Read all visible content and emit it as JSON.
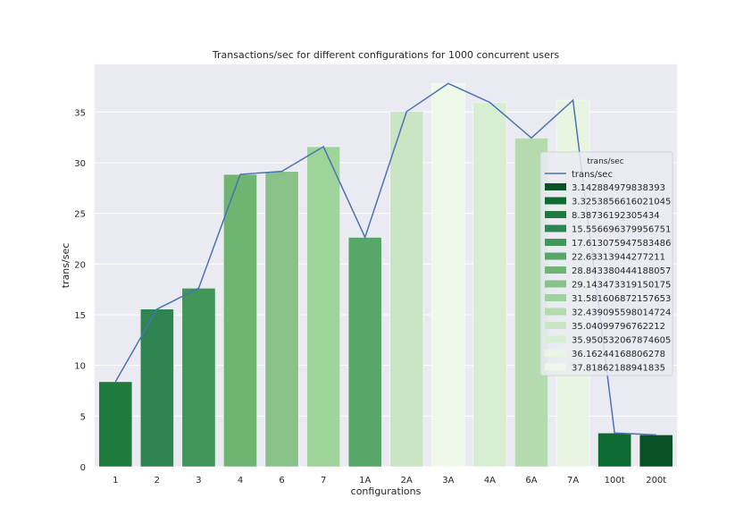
{
  "chart_data": {
    "type": "bar",
    "title": "Transactions/sec for different configurations for 1000 concurrent users",
    "xlabel": "configurations",
    "ylabel": "trans/sec",
    "categories": [
      "1",
      "2",
      "3",
      "4",
      "6",
      "7",
      "1A",
      "2A",
      "3A",
      "4A",
      "6A",
      "7A",
      "100t",
      "200t"
    ],
    "values": [
      8.38736192305434,
      15.556696379956751,
      17.613075947583486,
      28.843380444188057,
      29.143473319150175,
      31.581606872157653,
      22.63313944277211,
      35.04099796762212,
      37.81862188941835,
      35.950532067874605,
      32.439095598014724,
      36.16244168806278,
      3.3253856616021045,
      3.142884979838393
    ],
    "bar_colors": [
      "#1f7a3e",
      "#2f8551",
      "#43965a",
      "#6db570",
      "#88c288",
      "#9ed39a",
      "#57a769",
      "#c9e5c3",
      "#edf8e9",
      "#d8eed3",
      "#b3dbae",
      "#e9f5e3",
      "#0d6b31",
      "#0b5127"
    ],
    "line_series": {
      "name": "trans/sec",
      "values": [
        8.38736192305434,
        15.556696379956751,
        17.613075947583486,
        28.843380444188057,
        29.143473319150175,
        31.581606872157653,
        22.63313944277211,
        35.04099796762212,
        37.81862188941835,
        35.950532067874605,
        32.439095598014724,
        36.16244168806278,
        3.3253856616021045,
        3.142884979838393
      ],
      "color": "#4c72b0"
    },
    "yticks": [
      0,
      5,
      10,
      15,
      20,
      25,
      30,
      35
    ],
    "ylim": [
      0,
      39.7
    ],
    "grid": true,
    "legend": {
      "title": "trans/sec",
      "placement": "right",
      "line_label": "trans/sec",
      "items": [
        {
          "label": "3.142884979838393",
          "color": "#0b5127"
        },
        {
          "label": "3.3253856616021045",
          "color": "#0d6b31"
        },
        {
          "label": "8.38736192305434",
          "color": "#1f7a3e"
        },
        {
          "label": "15.556696379956751",
          "color": "#2f8551"
        },
        {
          "label": "17.613075947583486",
          "color": "#43965a"
        },
        {
          "label": "22.63313944277211",
          "color": "#57a769"
        },
        {
          "label": "28.843380444188057",
          "color": "#6db570"
        },
        {
          "label": "29.143473319150175",
          "color": "#88c288"
        },
        {
          "label": "31.581606872157653",
          "color": "#9ed39a"
        },
        {
          "label": "32.439095598014724",
          "color": "#b3dbae"
        },
        {
          "label": "35.04099796762212",
          "color": "#c9e5c3"
        },
        {
          "label": "35.950532067874605",
          "color": "#d8eed3"
        },
        {
          "label": "36.16244168806278",
          "color": "#e9f5e3"
        },
        {
          "label": "37.81862188941835",
          "color": "#edf8e9"
        }
      ]
    },
    "plot_background": "#eaeaf2"
  }
}
